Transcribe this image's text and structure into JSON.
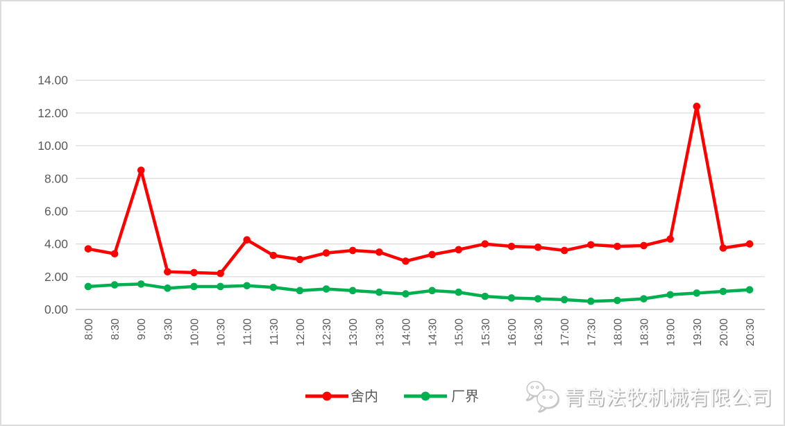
{
  "chart_data": {
    "type": "line",
    "title": "",
    "xlabel": "",
    "ylabel": "",
    "categories": [
      "8:00",
      "8:30",
      "9:00",
      "9:30",
      "10:00",
      "10:30",
      "11:00",
      "11:30",
      "12:00",
      "12:30",
      "13:00",
      "13:30",
      "14:00",
      "14:30",
      "15:00",
      "15:30",
      "16:00",
      "16:30",
      "17:00",
      "17:30",
      "18:00",
      "18:30",
      "19:00",
      "19:30",
      "20:00",
      "20:30"
    ],
    "series": [
      {
        "name": "舍内",
        "color": "#FF0000",
        "marker": "circle",
        "values": [
          3.7,
          3.4,
          8.5,
          2.3,
          2.25,
          2.2,
          4.25,
          3.3,
          3.05,
          3.45,
          3.6,
          3.5,
          2.95,
          3.35,
          3.65,
          4.0,
          3.85,
          3.8,
          3.6,
          3.95,
          3.85,
          3.9,
          4.3,
          12.4,
          3.75,
          4.0
        ]
      },
      {
        "name": "厂界",
        "color": "#00B050",
        "marker": "circle",
        "values": [
          1.4,
          1.5,
          1.55,
          1.3,
          1.4,
          1.4,
          1.45,
          1.35,
          1.15,
          1.25,
          1.15,
          1.05,
          0.95,
          1.15,
          1.05,
          0.8,
          0.7,
          0.65,
          0.6,
          0.5,
          0.55,
          0.65,
          0.9,
          1.0,
          1.1,
          1.2
        ]
      }
    ],
    "ylim": [
      0,
      14
    ],
    "ytick_step": 2,
    "ytick_labels": [
      "0.00",
      "2.00",
      "4.00",
      "6.00",
      "8.00",
      "10.00",
      "12.00",
      "14.00"
    ],
    "grid": true,
    "legend_position": "bottom",
    "gridline_color": "#D9D9D9",
    "axis_line_color": "#BFBFBF",
    "tick_label_color": "#595959"
  },
  "watermark": {
    "icon": "wechat-icon",
    "text": "青岛法牧机械有限公司"
  }
}
